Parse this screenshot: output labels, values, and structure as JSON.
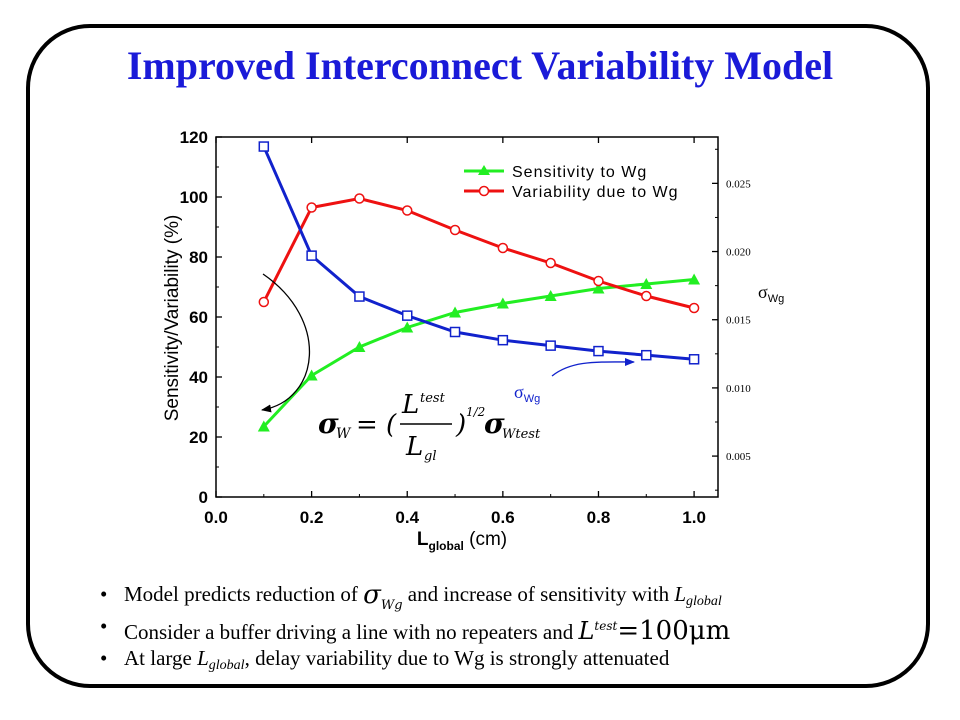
{
  "slide": {
    "title": "Improved Interconnect Variability Model",
    "bullets": {
      "b1_pre": "Model predicts reduction of ",
      "b1_sigma": "σ",
      "b1_sigma_sub": "Wg",
      "b1_mid": " and increase of sensitivity with ",
      "b1_L": "L",
      "b1_L_sub": "global",
      "b2_pre": "Consider a buffer driving a line with no repeaters and ",
      "b2_L": "L",
      "b2_L_sup": "test",
      "b2_eq": "=100",
      "b2_unit": "μm",
      "b3_pre": "At large ",
      "b3_L": "L",
      "b3_L_sub": "global",
      "b3_post": ", delay variability due to Wg is strongly attenuated"
    },
    "formula": {
      "sigma": "σ",
      "sub_w": "W",
      "equals": "= (",
      "num": "L",
      "num_sup": "test",
      "den": "L",
      "den_sub": "gl",
      "close": ")",
      "exp": "1/2",
      "sigma2": "σ",
      "sub_wtest": "Wtest"
    },
    "annotation": {
      "sigma": "σ",
      "sub": "Wg"
    }
  },
  "chart_data": {
    "type": "line",
    "xlabel": "L",
    "xlabel_sub": "global",
    "xlabel_unit": " (cm)",
    "ylabel": "Sensitivity/Variability (%)",
    "y2label": "σ",
    "y2label_sub": "Wg",
    "xlim": [
      0.0,
      1.05
    ],
    "ylim": [
      0,
      120
    ],
    "y2lim": [
      0.002,
      0.0284
    ],
    "xticks": [
      "0.0",
      "0.2",
      "0.4",
      "0.6",
      "0.8",
      "1.0"
    ],
    "yticks": [
      "0",
      "20",
      "40",
      "60",
      "80",
      "100",
      "120"
    ],
    "y2ticks": [
      "0.005",
      "0.010",
      "0.015",
      "0.020",
      "0.025"
    ],
    "x": [
      0.1,
      0.2,
      0.3,
      0.4,
      0.5,
      0.6,
      0.7,
      0.8,
      0.9,
      1.0
    ],
    "legend_position": "top-right",
    "series": [
      {
        "name": "Sensitivity to Wg",
        "color": "#22ee22",
        "marker": "triangle",
        "axis": "left",
        "values": [
          23.5,
          40.5,
          50,
          56.5,
          61.5,
          64.5,
          67,
          69.5,
          71,
          72.5
        ]
      },
      {
        "name": "Variability due to Wg",
        "color": "#ee1111",
        "marker": "circle-open",
        "axis": "left",
        "values": [
          65,
          96.5,
          99.5,
          95.5,
          89,
          83,
          78,
          72,
          67,
          63
        ]
      },
      {
        "name": "",
        "color": "#1122cc",
        "marker": "square-open",
        "axis": "right",
        "values": [
          0.0277,
          0.0197,
          0.0167,
          0.0153,
          0.0141,
          0.0135,
          0.0131,
          0.0127,
          0.0124,
          0.0121
        ]
      }
    ]
  }
}
